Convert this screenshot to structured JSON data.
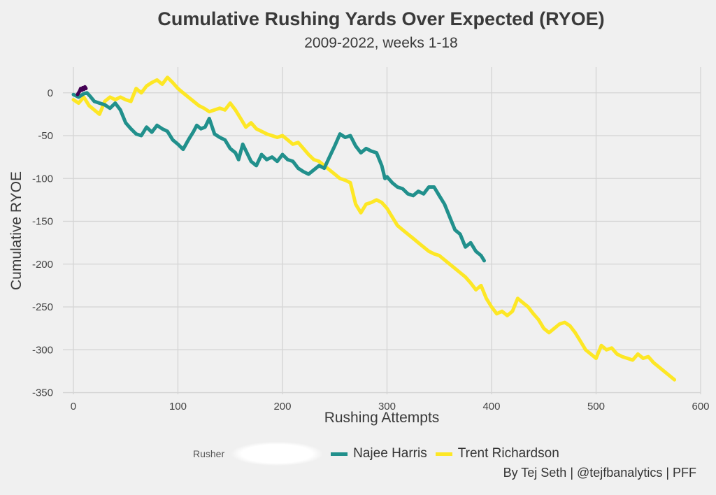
{
  "chart_data": {
    "type": "line",
    "title": "Cumulative Rushing Yards Over Expected (RYOE)",
    "subtitle": "2009-2022, weeks 1-18",
    "xlabel": "Rushing Attempts",
    "ylabel": "Cumulative RYOE",
    "xlim": [
      -10,
      600
    ],
    "ylim": [
      -352,
      30
    ],
    "xticks": [
      0,
      100,
      200,
      300,
      400,
      500,
      600
    ],
    "yticks": [
      0,
      -50,
      -100,
      -150,
      -200,
      -250,
      -300,
      -350
    ],
    "grid": true,
    "legend_placement": "bottom",
    "legend_title": "Rusher",
    "caption": "By Tej Seth | @tejfbanalytics | PFF",
    "series": [
      {
        "name": "Najee Harris",
        "color": "#21908c",
        "x": [
          0,
          5,
          10,
          13,
          16,
          20,
          25,
          30,
          35,
          40,
          45,
          50,
          55,
          60,
          65,
          70,
          75,
          80,
          85,
          90,
          95,
          100,
          105,
          110,
          115,
          118,
          122,
          126,
          130,
          135,
          140,
          145,
          150,
          155,
          158,
          162,
          166,
          170,
          175,
          180,
          185,
          190,
          195,
          200,
          205,
          210,
          215,
          220,
          225,
          230,
          235,
          240,
          245,
          250,
          255,
          260,
          265,
          270,
          275,
          280,
          285,
          290,
          295,
          298,
          300,
          305,
          310,
          315,
          320,
          325,
          330,
          335,
          340,
          345,
          350,
          355,
          360,
          365,
          370,
          375,
          380,
          385,
          390,
          393
        ],
        "y": [
          -2,
          -5,
          -1,
          0,
          -4,
          -10,
          -12,
          -14,
          -18,
          -12,
          -20,
          -35,
          -42,
          -48,
          -50,
          -40,
          -46,
          -38,
          -42,
          -45,
          -55,
          -60,
          -66,
          -55,
          -45,
          -38,
          -42,
          -40,
          -30,
          -48,
          -52,
          -55,
          -65,
          -70,
          -78,
          -60,
          -70,
          -80,
          -85,
          -72,
          -78,
          -75,
          -80,
          -72,
          -78,
          -80,
          -88,
          -92,
          -95,
          -90,
          -85,
          -88,
          -75,
          -62,
          -48,
          -52,
          -50,
          -62,
          -70,
          -65,
          -68,
          -70,
          -85,
          -100,
          -98,
          -105,
          -110,
          -112,
          -118,
          -120,
          -115,
          -118,
          -110,
          -110,
          -120,
          -130,
          -145,
          -160,
          -165,
          -180,
          -175,
          -185,
          -190,
          -196
        ]
      },
      {
        "name": "Trent Richardson",
        "color": "#fde725",
        "x": [
          0,
          5,
          10,
          15,
          20,
          25,
          30,
          35,
          40,
          45,
          50,
          55,
          60,
          65,
          70,
          75,
          80,
          85,
          90,
          95,
          100,
          105,
          110,
          115,
          120,
          125,
          130,
          135,
          140,
          145,
          150,
          155,
          160,
          165,
          170,
          175,
          180,
          185,
          190,
          195,
          200,
          205,
          210,
          215,
          220,
          225,
          230,
          235,
          240,
          245,
          250,
          255,
          260,
          265,
          270,
          275,
          280,
          285,
          290,
          295,
          300,
          305,
          310,
          315,
          320,
          325,
          330,
          335,
          340,
          345,
          350,
          355,
          360,
          365,
          370,
          375,
          380,
          385,
          390,
          395,
          400,
          405,
          410,
          415,
          420,
          425,
          430,
          435,
          440,
          445,
          450,
          455,
          460,
          465,
          470,
          475,
          480,
          485,
          490,
          495,
          500,
          505,
          510,
          515,
          520,
          525,
          530,
          535,
          540,
          545,
          550,
          555,
          560,
          565,
          570,
          575
        ],
        "y": [
          -8,
          -12,
          -5,
          -15,
          -20,
          -25,
          -10,
          -5,
          -8,
          -5,
          -8,
          -10,
          5,
          0,
          8,
          12,
          15,
          10,
          18,
          12,
          5,
          0,
          -5,
          -10,
          -15,
          -18,
          -22,
          -20,
          -18,
          -20,
          -12,
          -20,
          -30,
          -40,
          -35,
          -42,
          -45,
          -48,
          -50,
          -52,
          -50,
          -55,
          -60,
          -58,
          -65,
          -72,
          -78,
          -80,
          -85,
          -90,
          -95,
          -100,
          -102,
          -105,
          -130,
          -140,
          -130,
          -128,
          -125,
          -128,
          -135,
          -145,
          -155,
          -160,
          -165,
          -170,
          -175,
          -180,
          -185,
          -188,
          -190,
          -195,
          -200,
          -205,
          -210,
          -215,
          -222,
          -230,
          -225,
          -240,
          -250,
          -258,
          -255,
          -260,
          -255,
          -240,
          -245,
          -250,
          -258,
          -265,
          -275,
          -280,
          -275,
          -270,
          -268,
          -272,
          -280,
          -290,
          -300,
          -305,
          -310,
          -295,
          -300,
          -298,
          -305,
          -308,
          -310,
          -312,
          -305,
          -310,
          -308,
          -315,
          -320,
          -325,
          -330,
          -335
        ]
      },
      {
        "name": "",
        "color": "#440154",
        "x": [
          4,
          6,
          7,
          8,
          9,
          10,
          11,
          12
        ],
        "y": [
          -2,
          2,
          5,
          3,
          6,
          4,
          7,
          5
        ]
      }
    ]
  }
}
